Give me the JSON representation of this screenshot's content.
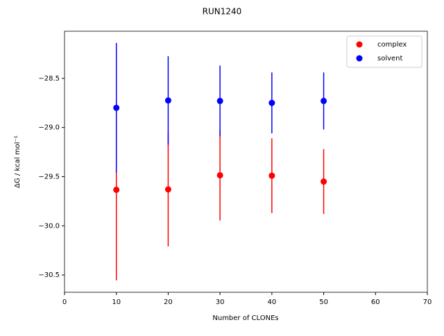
{
  "chart_data": {
    "type": "errorbar",
    "title": "RUN1240",
    "xlabel": "Number of CLONEs",
    "ylabel": "ΔG / kcal mol⁻¹",
    "xlim": [
      0,
      70
    ],
    "xticks": [
      0,
      10,
      20,
      30,
      40,
      50,
      60,
      70
    ],
    "ylim": [
      -30.676,
      -28.021
    ],
    "yticks": [
      {
        "value": -30.5,
        "label": "−30.5"
      },
      {
        "value": -30.0,
        "label": "−30.0"
      },
      {
        "value": -29.5,
        "label": "−29.5"
      },
      {
        "value": -29.0,
        "label": "−29.0"
      },
      {
        "value": -28.5,
        "label": "−28.5"
      }
    ],
    "legend": "upper right",
    "series": [
      {
        "name": "complex",
        "color": "#ff0000",
        "x": [
          10,
          20,
          30,
          40,
          50
        ],
        "values": [
          -29.634,
          -29.63,
          -29.486,
          -29.49,
          -29.55
        ],
        "errors": [
          0.92,
          0.58,
          0.46,
          0.38,
          0.33
        ]
      },
      {
        "name": "solvent",
        "color": "#0000ff",
        "x": [
          10,
          20,
          30,
          40,
          50
        ],
        "values": [
          -28.8,
          -28.725,
          -28.73,
          -28.75,
          -28.73
        ],
        "errors": [
          0.66,
          0.45,
          0.36,
          0.31,
          0.29
        ]
      }
    ]
  }
}
